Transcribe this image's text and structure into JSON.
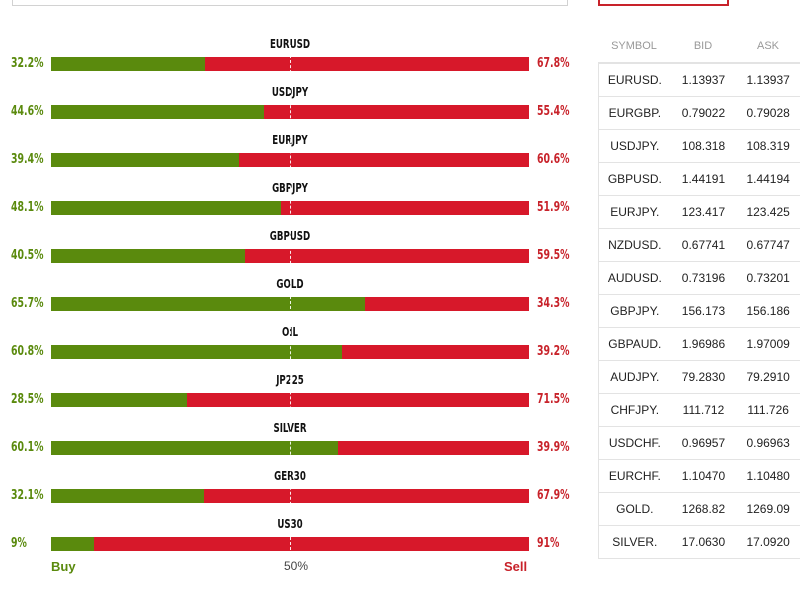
{
  "legend": {
    "buy": "Buy",
    "mid": "50%",
    "sell": "Sell"
  },
  "sentiment": [
    {
      "symbol": "EURUSD",
      "buy_label": "32.2%",
      "sell_label": "67.8%",
      "buy_pct": 32.2
    },
    {
      "symbol": "USDJPY",
      "buy_label": "44.6%",
      "sell_label": "55.4%",
      "buy_pct": 44.6
    },
    {
      "symbol": "EURJPY",
      "buy_label": "39.4%",
      "sell_label": "60.6%",
      "buy_pct": 39.4
    },
    {
      "symbol": "GBPJPY",
      "buy_label": "48.1%",
      "sell_label": "51.9%",
      "buy_pct": 48.1
    },
    {
      "symbol": "GBPUSD",
      "buy_label": "40.5%",
      "sell_label": "59.5%",
      "buy_pct": 40.5
    },
    {
      "symbol": "GOLD",
      "buy_label": "65.7%",
      "sell_label": "34.3%",
      "buy_pct": 65.7
    },
    {
      "symbol": "OIL",
      "buy_label": "60.8%",
      "sell_label": "39.2%",
      "buy_pct": 60.8
    },
    {
      "symbol": "JP225",
      "buy_label": "28.5%",
      "sell_label": "71.5%",
      "buy_pct": 28.5
    },
    {
      "symbol": "SILVER",
      "buy_label": "60.1%",
      "sell_label": "39.9%",
      "buy_pct": 60.1
    },
    {
      "symbol": "GER30",
      "buy_label": "32.1%",
      "sell_label": "67.9%",
      "buy_pct": 32.1
    },
    {
      "symbol": "US30",
      "buy_label": "9%",
      "sell_label": "91%",
      "buy_pct": 9
    }
  ],
  "quotes": {
    "headers": {
      "symbol": "SYMBOL",
      "bid": "BID",
      "ask": "ASK"
    },
    "rows": [
      {
        "symbol": "EURUSD.",
        "bid": "1.13937",
        "ask": "1.13937"
      },
      {
        "symbol": "EURGBP.",
        "bid": "0.79022",
        "ask": "0.79028"
      },
      {
        "symbol": "USDJPY.",
        "bid": "108.318",
        "ask": "108.319"
      },
      {
        "symbol": "GBPUSD.",
        "bid": "1.44191",
        "ask": "1.44194"
      },
      {
        "symbol": "EURJPY.",
        "bid": "123.417",
        "ask": "123.425"
      },
      {
        "symbol": "NZDUSD.",
        "bid": "0.67741",
        "ask": "0.67747"
      },
      {
        "symbol": "AUDUSD.",
        "bid": "0.73196",
        "ask": "0.73201"
      },
      {
        "symbol": "GBPJPY.",
        "bid": "156.173",
        "ask": "156.186"
      },
      {
        "symbol": "GBPAUD.",
        "bid": "1.96986",
        "ask": "1.97009"
      },
      {
        "symbol": "AUDJPY.",
        "bid": "79.2830",
        "ask": "79.2910"
      },
      {
        "symbol": "CHFJPY.",
        "bid": "111.712",
        "ask": "111.726"
      },
      {
        "symbol": "USDCHF.",
        "bid": "0.96957",
        "ask": "0.96963"
      },
      {
        "symbol": "EURCHF.",
        "bid": "1.10470",
        "ask": "1.10480"
      },
      {
        "symbol": "GOLD.",
        "bid": "1268.82",
        "ask": "1269.09"
      },
      {
        "symbol": "SILVER.",
        "bid": "17.0630",
        "ask": "17.0920"
      }
    ]
  },
  "colors": {
    "buy": "#5a8a0d",
    "sell": "#d7182a",
    "tab_border": "#c8222a"
  }
}
